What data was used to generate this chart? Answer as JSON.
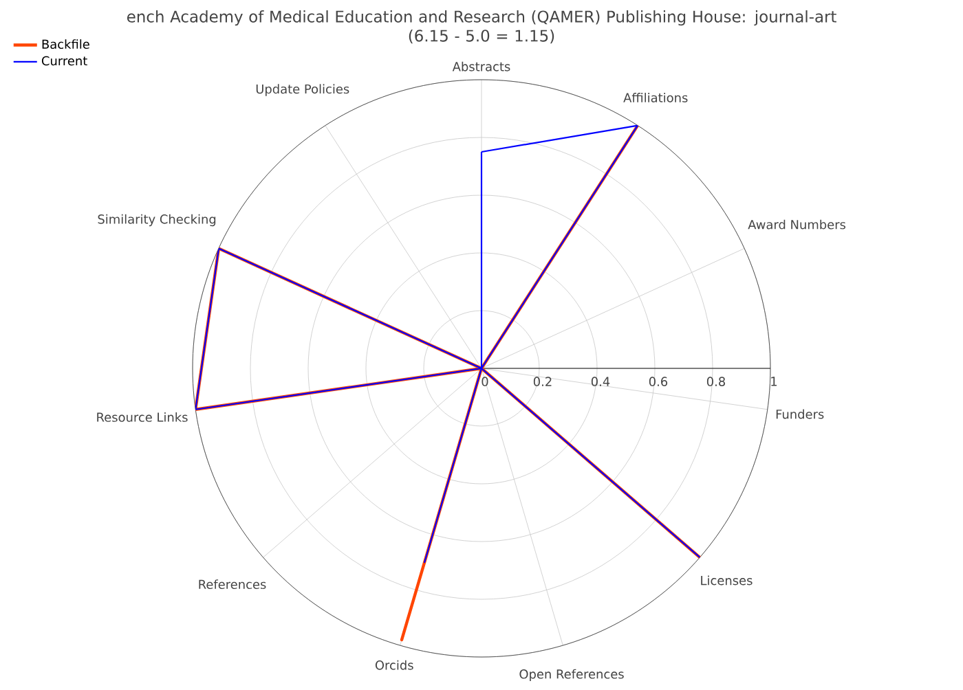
{
  "chart_data": {
    "type": "radar",
    "title": "ench Academy of Medical Education and Research (QAMER) Publishing House: journal-art",
    "subtitle": "(6.15 - 5.0 = 1.15)",
    "categories": [
      "Abstracts",
      "Affiliations",
      "Award Numbers",
      "Funders",
      "Licenses",
      "Open References",
      "Orcids",
      "References",
      "Resource Links",
      "Similarity Checking",
      "Update Policies"
    ],
    "series": [
      {
        "name": "Backfile",
        "color": "#ff4500",
        "values": [
          0,
          1,
          0,
          0,
          1,
          0,
          0.98,
          0,
          1,
          1,
          0
        ]
      },
      {
        "name": "Current",
        "color": "#0000ff",
        "values": [
          0.75,
          1,
          0,
          0,
          1,
          0,
          0.7,
          0,
          1,
          1,
          0
        ]
      }
    ],
    "ylim": [
      0,
      1
    ],
    "yticks": [
      0,
      0.2,
      0.4,
      0.6,
      0.8,
      1
    ],
    "grid": true,
    "legend": "top left",
    "marker": "none",
    "line_style": "solid"
  }
}
